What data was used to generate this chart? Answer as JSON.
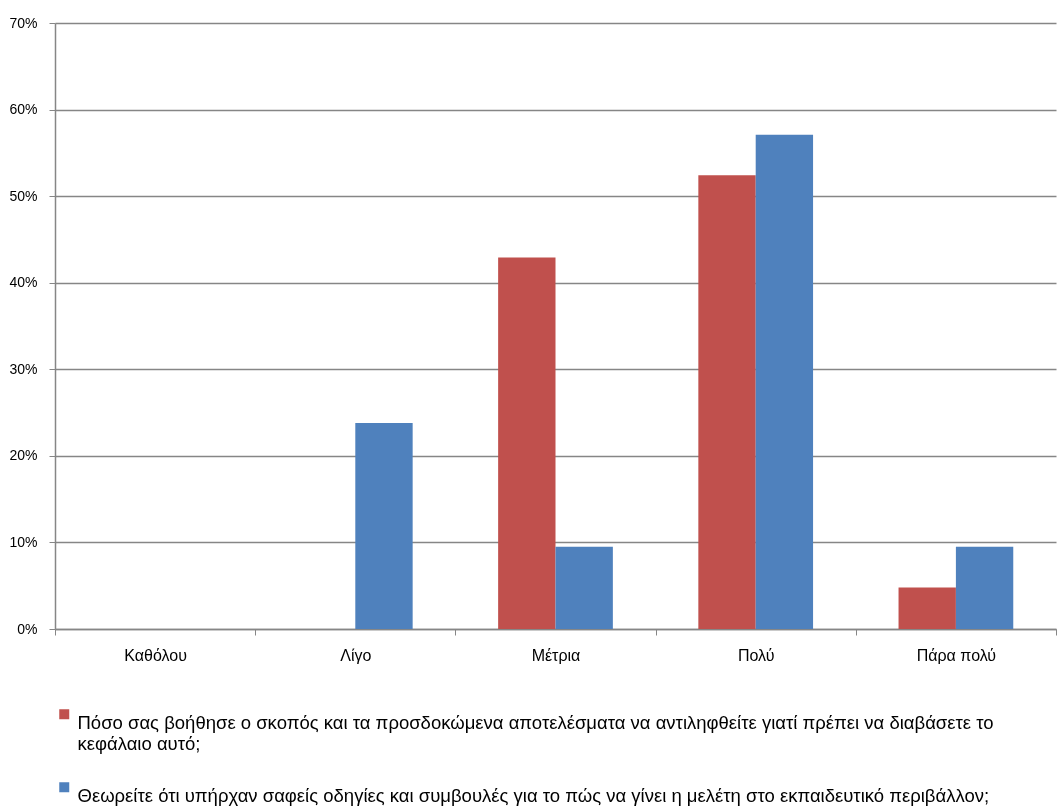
{
  "chart_data": {
    "type": "bar",
    "categories": [
      "Καθόλου",
      "Λίγο",
      "Μέτρια",
      "Πολύ",
      "Πάρα πολύ"
    ],
    "series": [
      {
        "name": "Πόσο σας βοήθησε ο σκοπός και τα προσδοκώμενα αποτελέσματα να αντιληφθείτε γιατί πρέπει να διαβάσετε το κεφάλαιο αυτό;",
        "color": "#c0504d",
        "values": [
          0,
          0,
          42.9,
          52.4,
          4.8
        ]
      },
      {
        "name": "Θεωρείτε ότι υπήρχαν σαφείς οδηγίες και συμβουλές για το πώς να γίνει η μελέτη στο εκπαιδευτικό περιβάλλον;",
        "color": "#4f81bd",
        "values": [
          0,
          23.8,
          9.5,
          57.1,
          9.5
        ]
      }
    ],
    "ylim": [
      0,
      70
    ],
    "yticks": [
      {
        "value": 0,
        "label": "0%"
      },
      {
        "value": 10,
        "label": "10%"
      },
      {
        "value": 20,
        "label": "20%"
      },
      {
        "value": 30,
        "label": "30%"
      },
      {
        "value": 40,
        "label": "40%"
      },
      {
        "value": 50,
        "label": "50%"
      },
      {
        "value": 60,
        "label": "60%"
      },
      {
        "value": 70,
        "label": "70%"
      }
    ],
    "grid": "y",
    "legend": "bottom"
  }
}
